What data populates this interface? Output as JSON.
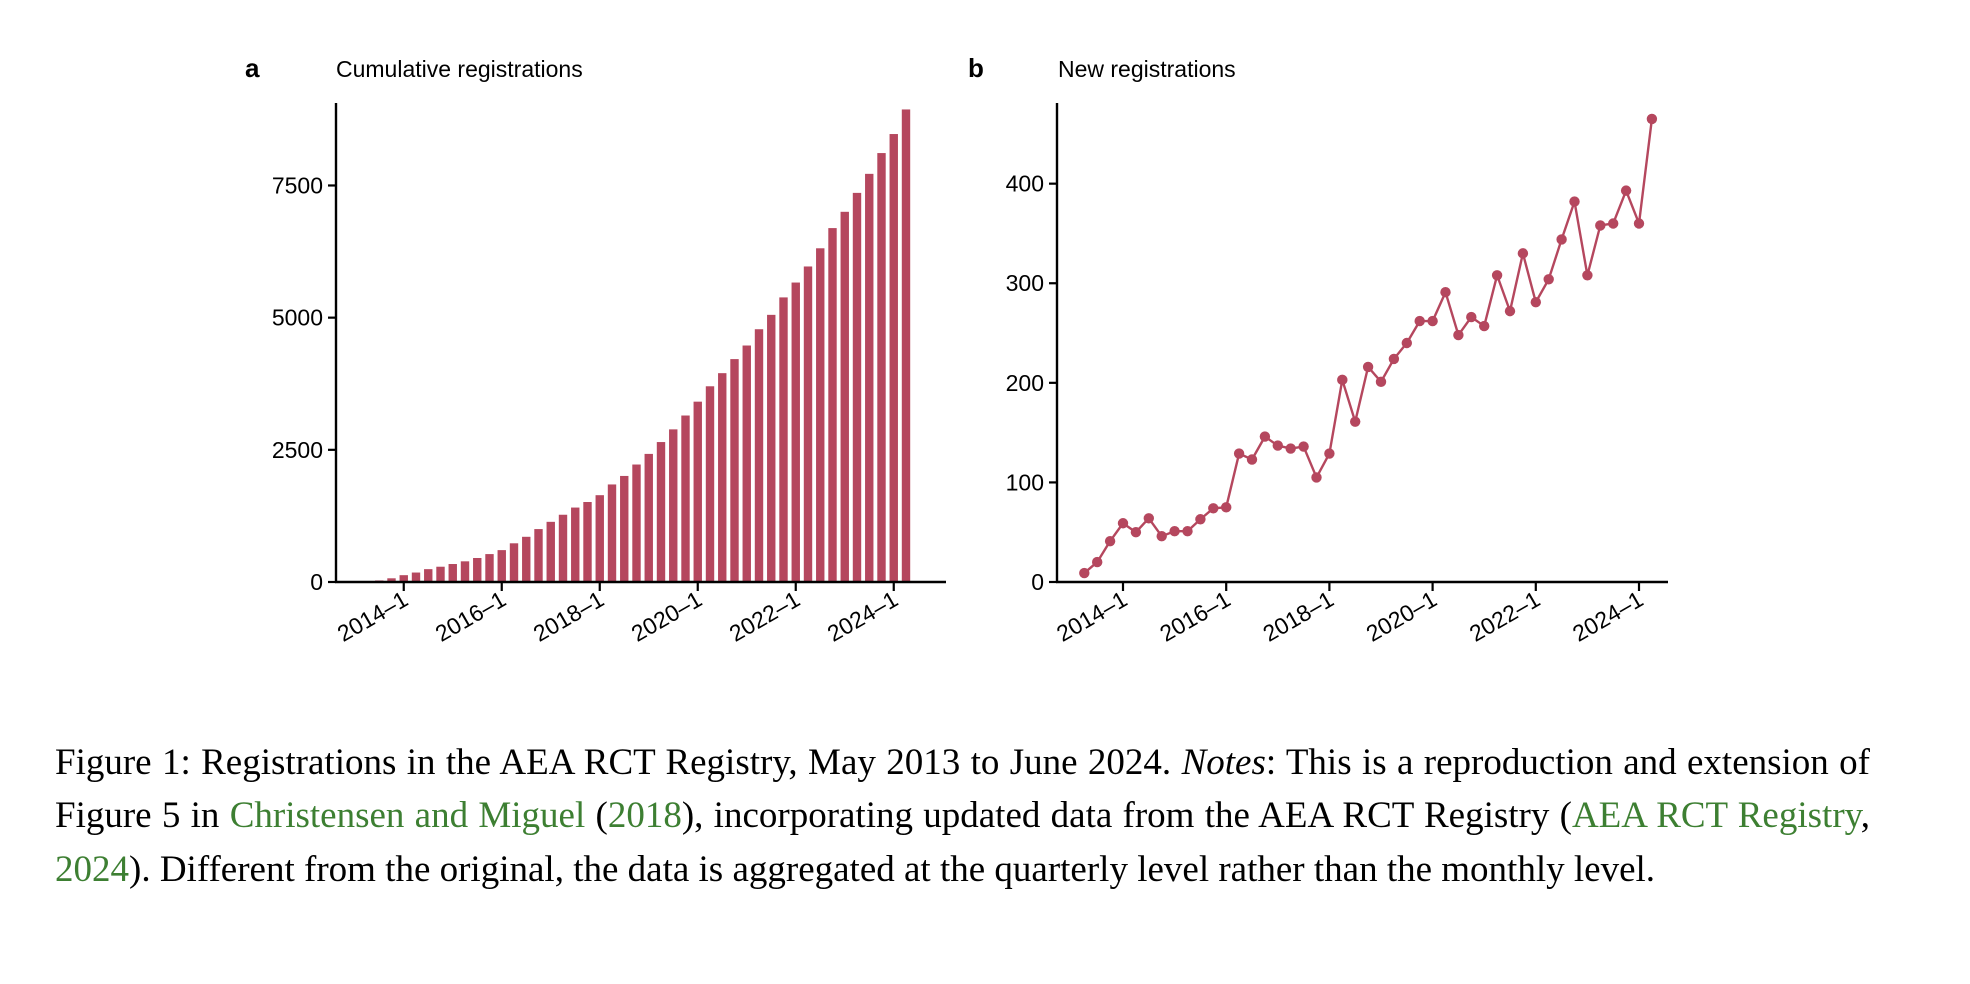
{
  "figure": {
    "accent_color": "#b5475e",
    "link_color": "#3d7f32"
  },
  "chart_data": [
    {
      "panel": "a",
      "type": "bar",
      "title": "Cumulative registrations",
      "xlabel": "",
      "ylabel": "",
      "ylim": [
        0,
        9060
      ],
      "yticks": [
        0,
        2500,
        5000,
        7500
      ],
      "ytick_labels": [
        "0",
        "2500",
        "5000",
        "7500"
      ],
      "xtick_labels": [
        "2014–1",
        "2016–1",
        "2018–1",
        "2020–1",
        "2022–1",
        "2024–1"
      ],
      "xtick_categories": [
        "2014-1",
        "2016-1",
        "2018-1",
        "2020-1",
        "2022-1",
        "2024-1"
      ],
      "grid": false,
      "legend": "none",
      "categories": [
        "2013-2",
        "2013-3",
        "2013-4",
        "2014-1",
        "2014-2",
        "2014-3",
        "2014-4",
        "2015-1",
        "2015-2",
        "2015-3",
        "2015-4",
        "2016-1",
        "2016-2",
        "2016-3",
        "2016-4",
        "2017-1",
        "2017-2",
        "2017-3",
        "2017-4",
        "2018-1",
        "2018-2",
        "2018-3",
        "2018-4",
        "2019-1",
        "2019-2",
        "2019-3",
        "2019-4",
        "2020-1",
        "2020-2",
        "2020-3",
        "2020-4",
        "2021-1",
        "2021-2",
        "2021-3",
        "2021-4",
        "2022-1",
        "2022-2",
        "2022-3",
        "2022-4",
        "2023-1",
        "2023-2",
        "2023-3",
        "2023-4",
        "2024-1",
        "2024-2"
      ],
      "values": [
        9,
        29,
        70,
        129,
        179,
        243,
        289,
        340,
        391,
        454,
        528,
        603,
        732,
        855,
        1001,
        1138,
        1272,
        1408,
        1513,
        1642,
        1845,
        2006,
        2222,
        2423,
        2647,
        2887,
        3149,
        3411,
        3702,
        3950,
        4216,
        4473,
        4781,
        5053,
        5383,
        5664,
        5968,
        6312,
        6694,
        7002,
        7360,
        7720,
        8113,
        8473,
        8938
      ]
    },
    {
      "panel": "b",
      "type": "line",
      "title": "New registrations",
      "xlabel": "",
      "ylabel": "",
      "ylim": [
        0,
        481
      ],
      "yticks": [
        0,
        100,
        200,
        300,
        400
      ],
      "ytick_labels": [
        "0",
        "100",
        "200",
        "300",
        "400"
      ],
      "xtick_labels": [
        "2014–1",
        "2016–1",
        "2018–1",
        "2020–1",
        "2022–1",
        "2024–1"
      ],
      "xtick_categories": [
        "2014-1",
        "2016-1",
        "2018-1",
        "2020-1",
        "2022-1",
        "2024-1"
      ],
      "grid": false,
      "legend": "none",
      "markers": true,
      "categories": [
        "2013-2",
        "2013-3",
        "2013-4",
        "2014-1",
        "2014-2",
        "2014-3",
        "2014-4",
        "2015-1",
        "2015-2",
        "2015-3",
        "2015-4",
        "2016-1",
        "2016-2",
        "2016-3",
        "2016-4",
        "2017-1",
        "2017-2",
        "2017-3",
        "2017-4",
        "2018-1",
        "2018-2",
        "2018-3",
        "2018-4",
        "2019-1",
        "2019-2",
        "2019-3",
        "2019-4",
        "2020-1",
        "2020-2",
        "2020-3",
        "2020-4",
        "2021-1",
        "2021-2",
        "2021-3",
        "2021-4",
        "2022-1",
        "2022-2",
        "2022-3",
        "2022-4",
        "2023-1",
        "2023-2",
        "2023-3",
        "2023-4",
        "2024-1",
        "2024-2"
      ],
      "values": [
        9,
        20,
        41,
        59,
        50,
        64,
        46,
        51,
        51,
        63,
        74,
        75,
        129,
        123,
        146,
        137,
        134,
        136,
        105,
        129,
        203,
        161,
        216,
        201,
        224,
        240,
        262,
        262,
        291,
        248,
        266,
        257,
        308,
        272,
        330,
        281,
        304,
        344,
        382,
        308,
        358,
        360,
        393,
        360,
        465
      ]
    }
  ],
  "panels": {
    "a": {
      "letter": "a",
      "title": "Cumulative registrations"
    },
    "b": {
      "letter": "b",
      "title": "New registrations"
    }
  },
  "caption": {
    "label": "Figure 1:",
    "title": "Registrations in the AEA RCT Registry, May 2013 to June 2024.",
    "notes_label": "Notes",
    "text_1": ": This is a reproduction and extension of Figure 5 in ",
    "link_1": "Christensen and Miguel",
    "text_2": " (",
    "link_2": "2018",
    "text_3": "), incorporating updated data from the AEA RCT Registry (",
    "link_3": "AEA RCT Registry",
    "text_4": ", ",
    "link_4": "2024",
    "text_5": ").  Different from the original, the data is aggregated at the quarterly level rather than the monthly level."
  }
}
